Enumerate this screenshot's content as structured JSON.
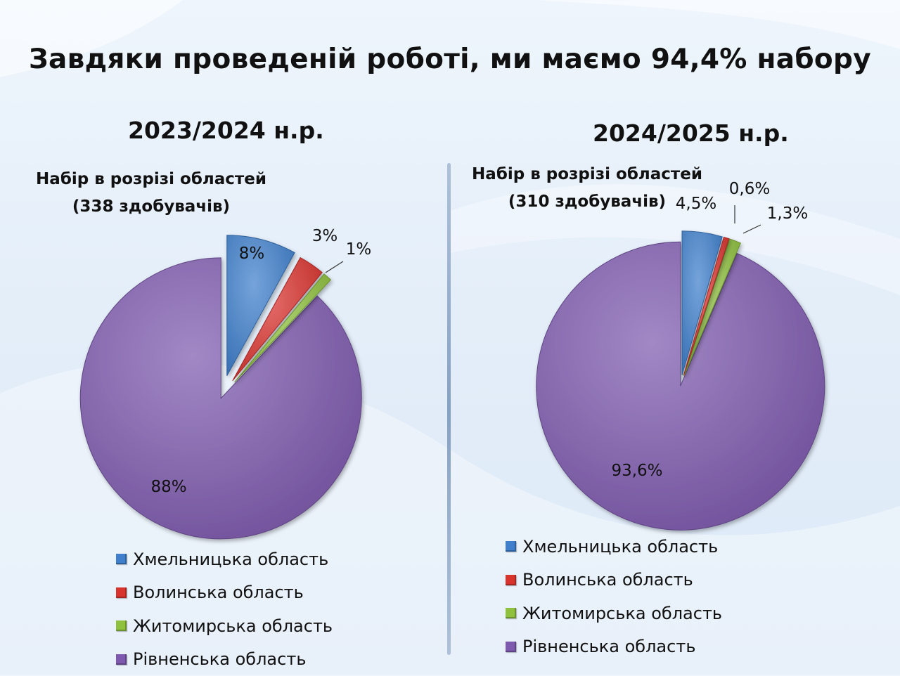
{
  "slide": {
    "title": "Завдяки проведеній роботі, ми маємо 94,4% набору"
  },
  "colors": {
    "Хмельницька область": "#3f7fcc",
    "Волинська область": "#d9332e",
    "Житомирська область": "#8fc13e",
    "Рівненська область": "#7e5aaf"
  },
  "chart_data": [
    {
      "type": "pie",
      "title": "2023/2024 н.р.",
      "subtitle_line1": "Набір в розрізі областей",
      "subtitle_line2": "(338 здобувачів)",
      "categories": [
        "Хмельницька область",
        "Волинська область",
        "Житомирська область",
        "Рівненська область"
      ],
      "values": [
        8,
        3,
        1,
        88
      ],
      "labels": [
        "8%",
        "3%",
        "1%",
        "88%"
      ],
      "legend_position": "bottom"
    },
    {
      "type": "pie",
      "title": "2024/2025 н.р.",
      "subtitle_line1": "Набір в розрізі областей",
      "subtitle_line2": "(310 здобувачів)",
      "categories": [
        "Хмельницька область",
        "Волинська область",
        "Житомирська область",
        "Рівненська область"
      ],
      "values": [
        4.5,
        0.6,
        1.3,
        93.6
      ],
      "labels": [
        "4,5%",
        "0,6%",
        "1,3%",
        "93,6%"
      ],
      "legend_position": "bottom"
    }
  ]
}
